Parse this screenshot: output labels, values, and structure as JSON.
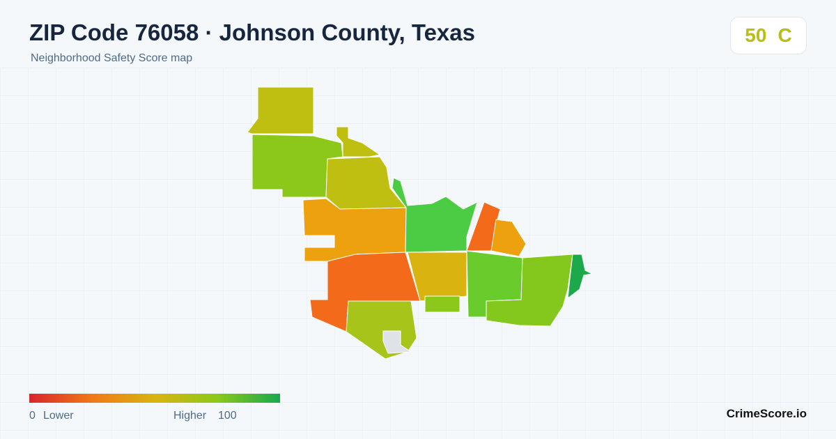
{
  "header": {
    "title": "ZIP Code 76058 · Johnson County, Texas",
    "subtitle": "Neighborhood Safety Score map"
  },
  "score": {
    "value": 50,
    "grade": "C"
  },
  "legend": {
    "min": 0,
    "min_label": "Lower",
    "max_label": "Higher",
    "max": 100
  },
  "brand": "CrimeScore.io"
}
